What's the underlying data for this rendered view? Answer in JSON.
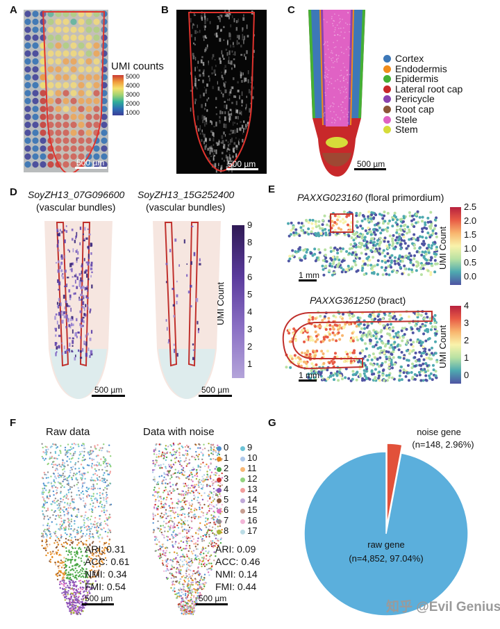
{
  "panels": {
    "A": "A",
    "B": "B",
    "C": "C",
    "D": "D",
    "E": "E",
    "F": "F",
    "G": "G"
  },
  "A": {
    "legend_title": "UMI counts",
    "ticks": [
      "5000",
      "4000",
      "3000",
      "2000",
      "1000"
    ],
    "scale_label": "500 µm"
  },
  "B": {
    "scale_label": "500 µm"
  },
  "C": {
    "scale_label": "500 µm",
    "legend": [
      {
        "label": "Cortex",
        "color": "#3d78b8"
      },
      {
        "label": "Endodermis",
        "color": "#f08c1c"
      },
      {
        "label": "Epidermis",
        "color": "#44b035"
      },
      {
        "label": "Lateral root cap",
        "color": "#c8282a"
      },
      {
        "label": "Pericycle",
        "color": "#8a43b0"
      },
      {
        "label": "Root cap",
        "color": "#8c5638"
      },
      {
        "label": "Stele",
        "color": "#e062c4"
      },
      {
        "label": "Stem",
        "color": "#d6dc3a"
      }
    ]
  },
  "D": {
    "gene1": "SoyZH13_07G096600",
    "gene1_sub": "(vascular bundles)",
    "gene2": "SoyZH13_15G252400",
    "gene2_sub": "(vascular bundles)",
    "colorbar_title": "UMI Count",
    "ticks": [
      "9",
      "8",
      "7",
      "6",
      "5",
      "4",
      "3",
      "2",
      "1"
    ],
    "scale1": "500 µm",
    "scale2": "500 µm"
  },
  "E": {
    "gene1": "PAXXG023160",
    "gene1_tag": " (floral primordium)",
    "gene2": "PAXXG361250",
    "gene2_tag": " (bract)",
    "colorbar_title": "UMI Count",
    "ticks1": [
      "2.5",
      "2.0",
      "1.5",
      "1.0",
      "0.5",
      "0.0"
    ],
    "ticks2": [
      "4",
      "3",
      "2",
      "1",
      "0"
    ],
    "scale1": "1 mm",
    "scale2": "1 mm"
  },
  "F": {
    "title1": "Raw data",
    "title2": "Data with noise",
    "clusters": [
      "0",
      "1",
      "2",
      "3",
      "4",
      "5",
      "6",
      "7",
      "8",
      "9",
      "10",
      "11",
      "12",
      "13",
      "14",
      "15",
      "16",
      "17"
    ],
    "cluster_colors": [
      "#4f8fd0",
      "#e58a1f",
      "#4aa845",
      "#c9302c",
      "#8a55b8",
      "#8c5a3c",
      "#dd6fbf",
      "#8f8f8f",
      "#a9b536",
      "#6cc3d6",
      "#aec8ea",
      "#f7b877",
      "#93d37f",
      "#f29d9c",
      "#c0a9d9",
      "#c79e91",
      "#f3b6d8",
      "#bcdde6"
    ],
    "metrics1": [
      "ARI: 0.31",
      "ACC: 0.61",
      "NMI: 0.34",
      "FMI: 0.54"
    ],
    "metrics2": [
      "ARI: 0.09",
      "ACC: 0.46",
      "NMI: 0.14",
      "FMI: 0.44"
    ],
    "scale1": "500 µm",
    "scale2": "500 µm"
  },
  "G": {
    "chart_data": {
      "type": "pie",
      "slices": [
        {
          "label": "raw gene",
          "detail": "(n=4,852, 97.04%)",
          "value": 4852,
          "percent": 97.04,
          "color": "#5bafdc"
        },
        {
          "label": "noise gene",
          "detail": "(n=148, 2.96%)",
          "value": 148,
          "percent": 2.96,
          "color": "#e2513a"
        }
      ]
    }
  },
  "watermark": "知乎 @Evil Genius"
}
